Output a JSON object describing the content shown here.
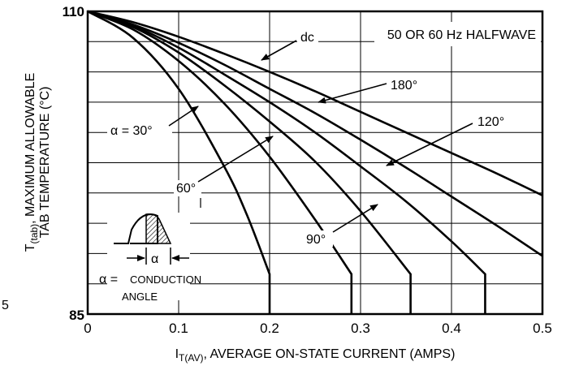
{
  "chart_data": {
    "type": "line",
    "xlabel_main": "I",
    "xlabel_sub": "T(AV)",
    "xlabel_rest": ", AVERAGE ON-STATE CURRENT (AMPS)",
    "ylabel_line1_main": "T",
    "ylabel_line1_sub": "(tab)",
    "ylabel_line1_rest": ", MAXIMUM ALLOWABLE",
    "ylabel_line2": "TAB TEMPERATURE (°C)",
    "xlim": [
      0,
      0.5
    ],
    "ylim": [
      85,
      110
    ],
    "x_ticks": [
      "0",
      "0.1",
      "0.2",
      "0.3",
      "0.4",
      "0.5"
    ],
    "y_ticks": [
      "85",
      "110"
    ],
    "stray_label": "5",
    "box_label": "50 OR 60 Hz HALFWAVE",
    "inset_alpha_label": "α",
    "inset_def_symbol": "α =",
    "inset_def_line1": "CONDUCTION",
    "inset_def_line2": "ANGLE",
    "series": [
      {
        "name": "α = 30°",
        "x": [
          0,
          0.05,
          0.1,
          0.15,
          0.175,
          0.2,
          0.2
        ],
        "y": [
          110,
          107.8,
          103.6,
          97.2,
          93.2,
          88.3,
          85
        ]
      },
      {
        "name": "60°",
        "x": [
          0,
          0.05,
          0.1,
          0.15,
          0.2,
          0.25,
          0.29,
          0.29
        ],
        "y": [
          110,
          108.5,
          105.9,
          102.4,
          98,
          92.8,
          88.3,
          85
        ]
      },
      {
        "name": "90°",
        "x": [
          0,
          0.05,
          0.1,
          0.15,
          0.2,
          0.25,
          0.3,
          0.355,
          0.355
        ],
        "y": [
          110,
          108.7,
          106.6,
          103.9,
          100.9,
          97.6,
          93.5,
          88.3,
          85
        ]
      },
      {
        "name": "120°",
        "x": [
          0,
          0.05,
          0.1,
          0.15,
          0.2,
          0.25,
          0.3,
          0.35,
          0.4,
          0.437,
          0.437
        ],
        "y": [
          110,
          108.8,
          107.0,
          104.8,
          102.5,
          100.0,
          97.2,
          94.3,
          91.0,
          88.3,
          85
        ]
      },
      {
        "name": "180°",
        "x": [
          0,
          0.05,
          0.1,
          0.15,
          0.2,
          0.25,
          0.3,
          0.35,
          0.4,
          0.45,
          0.5
        ],
        "y": [
          110,
          108.9,
          107.4,
          105.6,
          103.6,
          101.6,
          99.4,
          97.1,
          94.7,
          92.3,
          89.8
        ]
      },
      {
        "name": "dc",
        "x": [
          0,
          0.05,
          0.1,
          0.15,
          0.2,
          0.25,
          0.3,
          0.35,
          0.4,
          0.45,
          0.5
        ],
        "y": [
          110,
          109.1,
          107.9,
          106.5,
          105,
          103.4,
          101.7,
          100,
          98.3,
          96.6,
          94.8
        ]
      }
    ],
    "labels": {
      "a30": "α = 30°",
      "a60": "60°",
      "a90": "90°",
      "a120": "120°",
      "a180": "180°",
      "adc": "dc"
    }
  }
}
